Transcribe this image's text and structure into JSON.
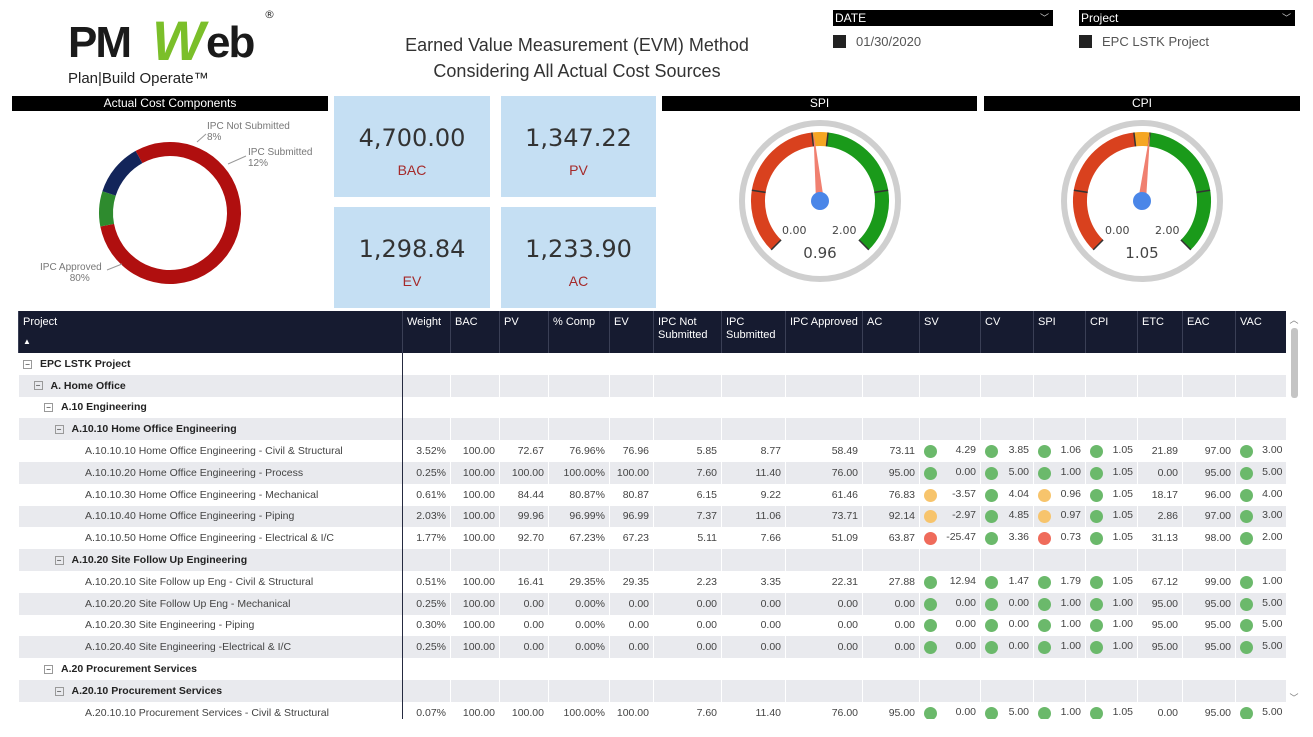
{
  "logo": {
    "pm": "PM",
    "w": "W",
    "eb": "eb",
    "reg": "®",
    "tag": "Plan|Build Operate™"
  },
  "title": {
    "line1": "Earned Value Measurement (EVM) Method",
    "line2": "Considering All Actual Cost Sources"
  },
  "slicers": [
    {
      "label": "DATE",
      "value": "01/30/2020"
    },
    {
      "label": "Project",
      "value": "EPC LSTK Project"
    }
  ],
  "donut": {
    "title": "Actual Cost Components",
    "slices": [
      {
        "name": "IPC Approved",
        "pct": 80,
        "label": "80%",
        "color": "#b00f0f"
      },
      {
        "name": "IPC Not Submitted",
        "pct": 8,
        "label": "8%",
        "color": "#2e8b2e"
      },
      {
        "name": "IPC Submitted",
        "pct": 12,
        "label": "12%",
        "color": "#13255a"
      }
    ]
  },
  "cards": [
    {
      "value": "4,700.00",
      "label": "BAC"
    },
    {
      "value": "1,347.22",
      "label": "PV"
    },
    {
      "value": "1,298.84",
      "label": "EV"
    },
    {
      "value": "1,233.90",
      "label": "AC"
    }
  ],
  "gauges": [
    {
      "title": "SPI",
      "value": 0.96,
      "value_label": "0.96",
      "min_label": "0.00",
      "max_label": "2.00",
      "min": 0,
      "max": 2
    },
    {
      "title": "CPI",
      "value": 1.05,
      "value_label": "1.05",
      "min_label": "0.00",
      "max_label": "2.00",
      "min": 0,
      "max": 2
    }
  ],
  "gauge_colors": {
    "red": "#d9411e",
    "orange": "#f5a623",
    "green": "#1a9a1a",
    "ring": "#cfcfcf",
    "needle": "#f08070",
    "hub": "#4a86e8"
  },
  "status_colors": {
    "g": "#6bb96b",
    "y": "#f7c46c",
    "r": "#ef6b5b"
  },
  "table": {
    "columns": [
      "Project",
      "Weight",
      "BAC",
      "PV",
      "% Comp",
      "EV",
      "IPC Not Submitted",
      "IPC Submitted",
      "IPC Approved",
      "AC",
      "SV",
      "CV",
      "SPI",
      "CPI",
      "ETC",
      "EAC",
      "VAC"
    ],
    "sort_icon": "▲",
    "rows": [
      {
        "level": 0,
        "name": "EPC LSTK Project",
        "group": true
      },
      {
        "level": 1,
        "name": "A. Home Office",
        "group": true
      },
      {
        "level": 2,
        "name": "A.10 Engineering",
        "group": true
      },
      {
        "level": 3,
        "name": "A.10.10 Home Office Engineering",
        "group": true
      },
      {
        "level": 4,
        "name": "A.10.10.10 Home Office Engineering - Civil & Structural",
        "v": [
          "3.52%",
          "100.00",
          "72.67",
          "76.96%",
          "76.96",
          "5.85",
          "8.77",
          "58.49",
          "73.11",
          "4.29",
          "3.85",
          "1.06",
          "1.05",
          "21.89",
          "97.00",
          "3.00"
        ],
        "s": [
          "g",
          "g",
          "g",
          "g",
          "g"
        ]
      },
      {
        "level": 4,
        "name": "A.10.10.20 Home Office Engineering - Process",
        "v": [
          "0.25%",
          "100.00",
          "100.00",
          "100.00%",
          "100.00",
          "7.60",
          "11.40",
          "76.00",
          "95.00",
          "0.00",
          "5.00",
          "1.00",
          "1.05",
          "0.00",
          "95.00",
          "5.00"
        ],
        "s": [
          "g",
          "g",
          "g",
          "g",
          "g"
        ]
      },
      {
        "level": 4,
        "name": "A.10.10.30 Home Office Engineering - Mechanical",
        "v": [
          "0.61%",
          "100.00",
          "84.44",
          "80.87%",
          "80.87",
          "6.15",
          "9.22",
          "61.46",
          "76.83",
          "-3.57",
          "4.04",
          "0.96",
          "1.05",
          "18.17",
          "96.00",
          "4.00"
        ],
        "s": [
          "y",
          "g",
          "y",
          "g",
          "g"
        ]
      },
      {
        "level": 4,
        "name": "A.10.10.40 Home Office Engineering - Piping",
        "v": [
          "2.03%",
          "100.00",
          "99.96",
          "96.99%",
          "96.99",
          "7.37",
          "11.06",
          "73.71",
          "92.14",
          "-2.97",
          "4.85",
          "0.97",
          "1.05",
          "2.86",
          "97.00",
          "3.00"
        ],
        "s": [
          "y",
          "g",
          "y",
          "g",
          "g"
        ]
      },
      {
        "level": 4,
        "name": "A.10.10.50 Home Office Engineering - Electrical & I/C",
        "v": [
          "1.77%",
          "100.00",
          "92.70",
          "67.23%",
          "67.23",
          "5.11",
          "7.66",
          "51.09",
          "63.87",
          "-25.47",
          "3.36",
          "0.73",
          "1.05",
          "31.13",
          "98.00",
          "2.00"
        ],
        "s": [
          "r",
          "g",
          "r",
          "g",
          "g"
        ]
      },
      {
        "level": 3,
        "name": "A.10.20 Site Follow Up Engineering",
        "group": true
      },
      {
        "level": 4,
        "name": "A.10.20.10 Site Follow up Eng - Civil & Structural",
        "v": [
          "0.51%",
          "100.00",
          "16.41",
          "29.35%",
          "29.35",
          "2.23",
          "3.35",
          "22.31",
          "27.88",
          "12.94",
          "1.47",
          "1.79",
          "1.05",
          "67.12",
          "99.00",
          "1.00"
        ],
        "s": [
          "g",
          "g",
          "g",
          "g",
          "g"
        ]
      },
      {
        "level": 4,
        "name": "A.10.20.20 Site Follow Up Eng - Mechanical",
        "v": [
          "0.25%",
          "100.00",
          "0.00",
          "0.00%",
          "0.00",
          "0.00",
          "0.00",
          "0.00",
          "0.00",
          "0.00",
          "0.00",
          "1.00",
          "1.00",
          "95.00",
          "95.00",
          "5.00"
        ],
        "s": [
          "g",
          "g",
          "g",
          "g",
          "g"
        ]
      },
      {
        "level": 4,
        "name": "A.10.20.30 Site Engineering - Piping",
        "v": [
          "0.30%",
          "100.00",
          "0.00",
          "0.00%",
          "0.00",
          "0.00",
          "0.00",
          "0.00",
          "0.00",
          "0.00",
          "0.00",
          "1.00",
          "1.00",
          "95.00",
          "95.00",
          "5.00"
        ],
        "s": [
          "g",
          "g",
          "g",
          "g",
          "g"
        ]
      },
      {
        "level": 4,
        "name": "A.10.20.40 Site Engineering -Electrical & I/C",
        "v": [
          "0.25%",
          "100.00",
          "0.00",
          "0.00%",
          "0.00",
          "0.00",
          "0.00",
          "0.00",
          "0.00",
          "0.00",
          "0.00",
          "1.00",
          "1.00",
          "95.00",
          "95.00",
          "5.00"
        ],
        "s": [
          "g",
          "g",
          "g",
          "g",
          "g"
        ]
      },
      {
        "level": 2,
        "name": "A.20 Procurement Services",
        "group": true
      },
      {
        "level": 3,
        "name": "A.20.10 Procurement Services",
        "group": true
      },
      {
        "level": 4,
        "name": "A.20.10.10 Procurement Services - Civil & Structural",
        "v": [
          "0.07%",
          "100.00",
          "100.00",
          "100.00%",
          "100.00",
          "7.60",
          "11.40",
          "76.00",
          "95.00",
          "0.00",
          "5.00",
          "1.00",
          "1.05",
          "0.00",
          "95.00",
          "5.00"
        ],
        "s": [
          "g",
          "g",
          "g",
          "g",
          "g"
        ]
      }
    ]
  }
}
